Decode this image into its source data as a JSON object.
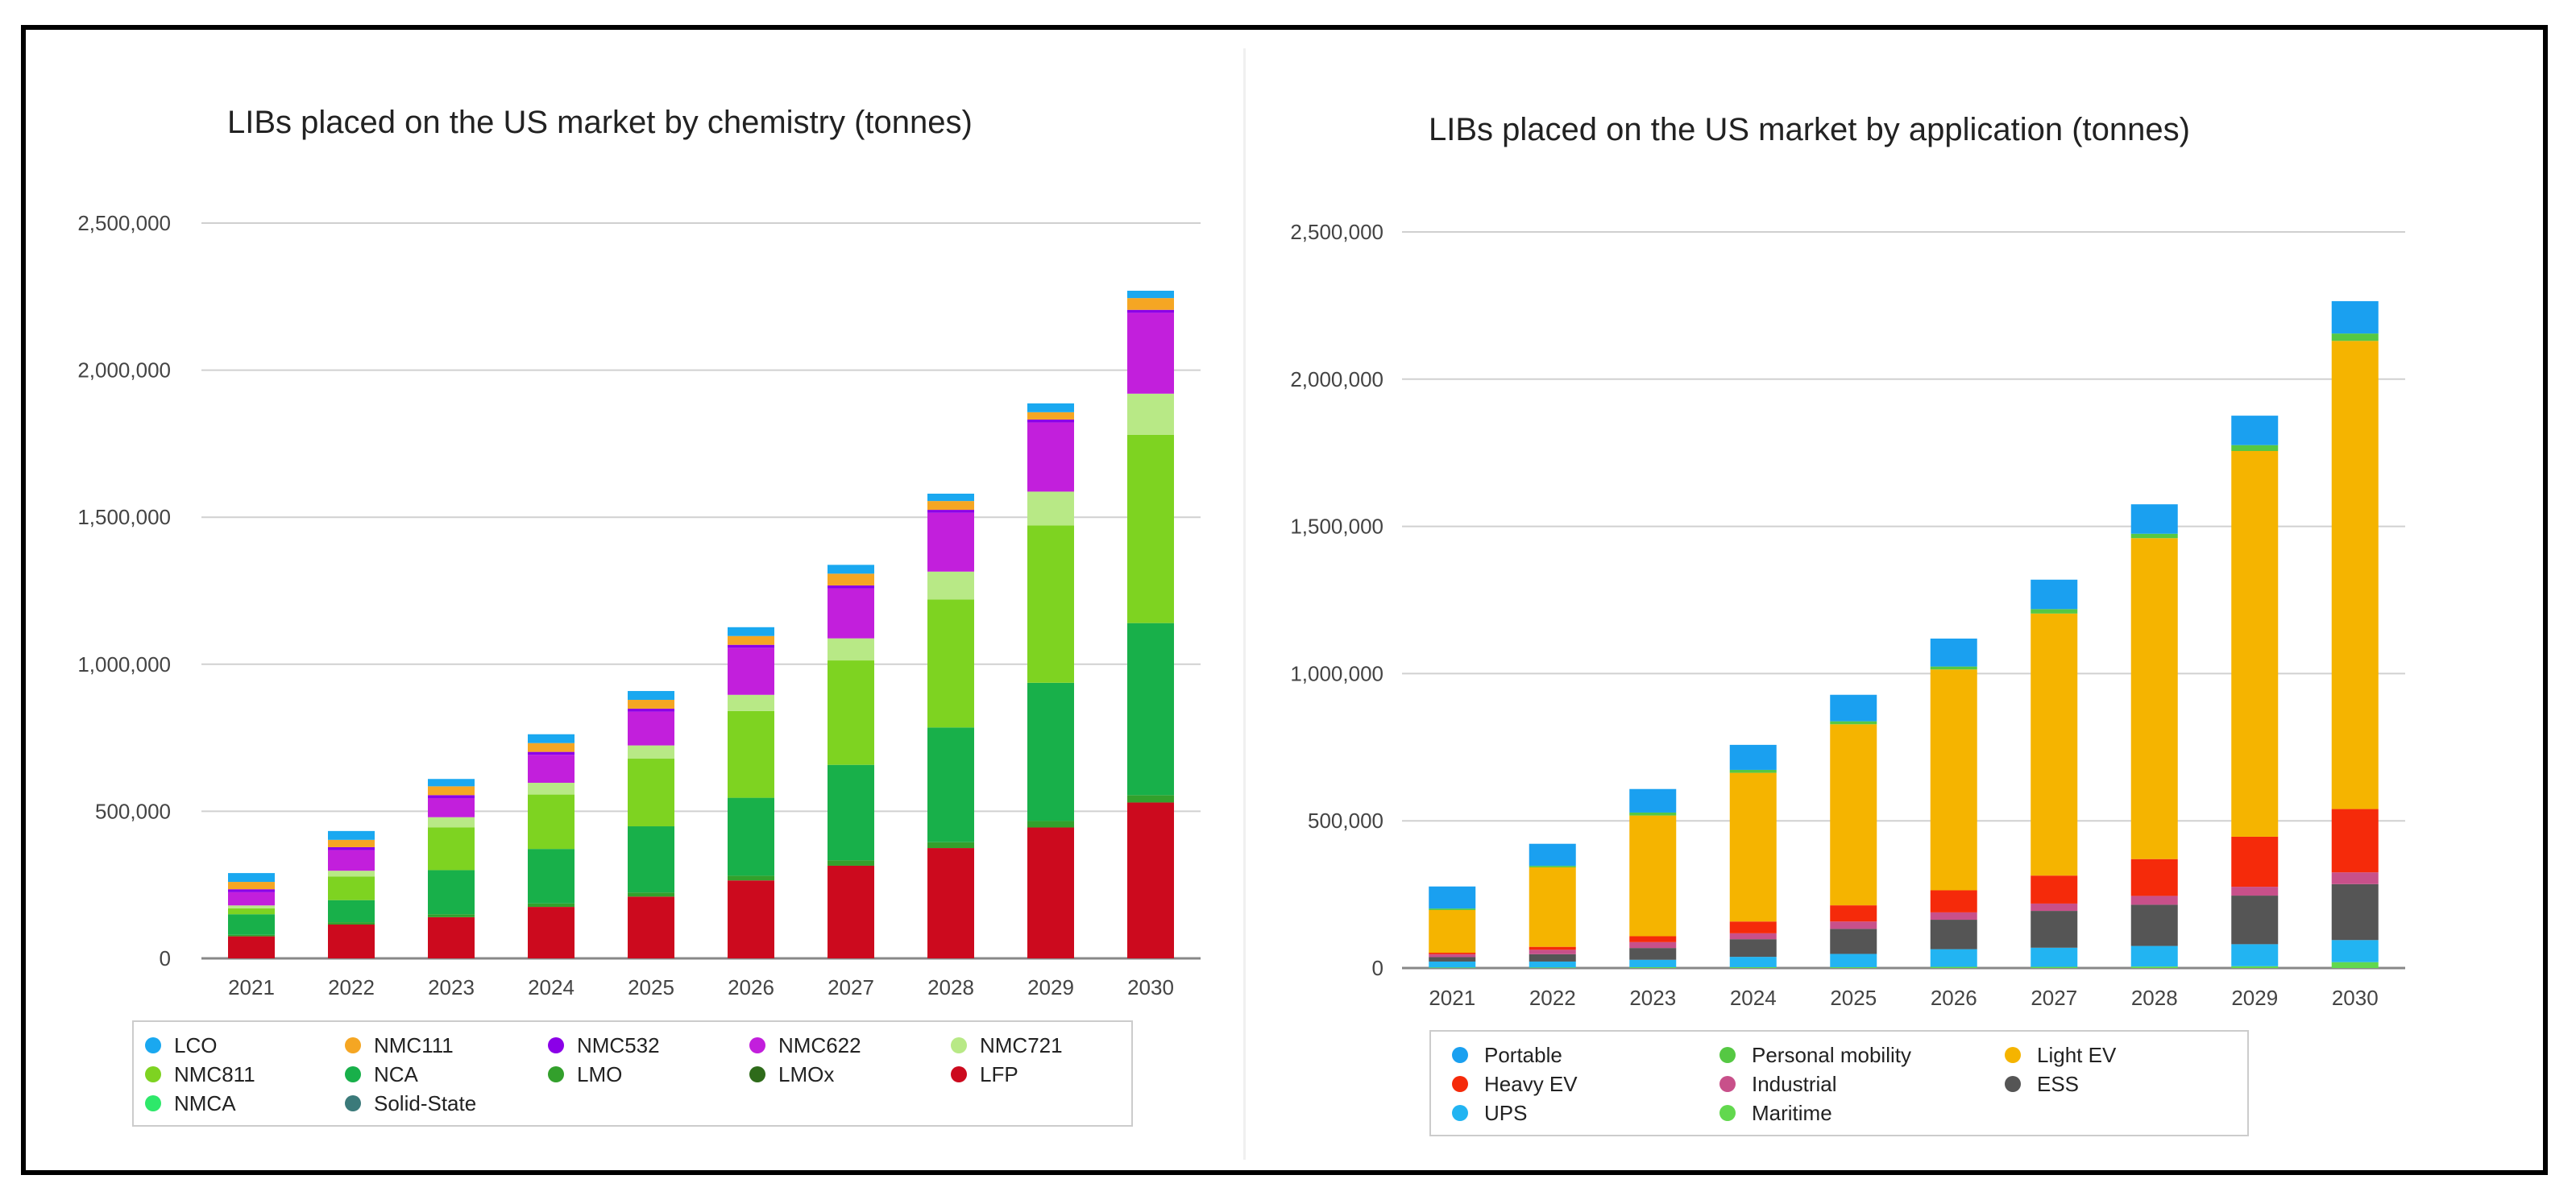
{
  "chart_data": [
    {
      "type": "bar",
      "stacked": true,
      "title": "LIBs placed on the US market by chemistry (tonnes)",
      "xlabel": "",
      "ylabel": "",
      "ylim": [
        0,
        2500000
      ],
      "yticks": [
        0,
        500000,
        1000000,
        1500000,
        2000000,
        2500000
      ],
      "ytick_labels": [
        "0",
        "500,000",
        "1,000,000",
        "1,500,000",
        "2,000,000",
        "2,500,000"
      ],
      "grid": true,
      "legend_position": "bottom",
      "categories": [
        "2021",
        "2022",
        "2023",
        "2024",
        "2025",
        "2026",
        "2027",
        "2028",
        "2029",
        "2030"
      ],
      "series": [
        {
          "name": "LFP",
          "color": "#cc0a1e",
          "values": [
            75000,
            115000,
            140000,
            175000,
            210000,
            265000,
            315000,
            375000,
            445000,
            530000
          ]
        },
        {
          "name": "LMOx",
          "color": "#2e6b1a",
          "values": [
            0,
            0,
            0,
            0,
            0,
            0,
            0,
            0,
            0,
            0
          ]
        },
        {
          "name": "LMO",
          "color": "#33a02c",
          "values": [
            5000,
            8000,
            10000,
            12000,
            14000,
            16000,
            18000,
            20000,
            22000,
            25000
          ]
        },
        {
          "name": "NCA",
          "color": "#18b04a",
          "values": [
            70000,
            75000,
            150000,
            185000,
            225000,
            265000,
            325000,
            390000,
            470000,
            585000
          ]
        },
        {
          "name": "NMC811",
          "color": "#7ed321",
          "values": [
            20000,
            80000,
            145000,
            185000,
            230000,
            295000,
            355000,
            435000,
            535000,
            640000
          ]
        },
        {
          "name": "NMC721",
          "color": "#b8e986",
          "values": [
            10000,
            20000,
            35000,
            40000,
            45000,
            55000,
            75000,
            95000,
            115000,
            140000
          ]
        },
        {
          "name": "NMC622",
          "color": "#c21fdc",
          "values": [
            45000,
            70000,
            65000,
            95000,
            115000,
            160000,
            170000,
            200000,
            235000,
            275000
          ]
        },
        {
          "name": "NMC532",
          "color": "#8b00e8",
          "values": [
            10000,
            10000,
            10000,
            10000,
            10000,
            10000,
            10000,
            10000,
            10000,
            10000
          ]
        },
        {
          "name": "NMC111",
          "color": "#f5a623",
          "values": [
            25000,
            25000,
            30000,
            30000,
            30000,
            30000,
            40000,
            30000,
            25000,
            40000
          ]
        },
        {
          "name": "NMCA",
          "color": "#2ee86a",
          "values": [
            0,
            0,
            0,
            0,
            0,
            0,
            0,
            0,
            0,
            0
          ]
        },
        {
          "name": "Solid-State",
          "color": "#3b7a7a",
          "values": [
            0,
            0,
            0,
            0,
            0,
            0,
            0,
            0,
            0,
            0
          ]
        },
        {
          "name": "LCO",
          "color": "#1aa8f0",
          "values": [
            30000,
            30000,
            25000,
            30000,
            30000,
            30000,
            30000,
            25000,
            30000,
            25000
          ]
        }
      ],
      "legend": [
        [
          "LCO",
          "NMC111",
          "NMC532",
          "NMC622",
          "NMC721"
        ],
        [
          "NMC811",
          "NCA",
          "LMO",
          "LMOx",
          "LFP"
        ],
        [
          "NMCA",
          "Solid-State"
        ]
      ]
    },
    {
      "type": "bar",
      "stacked": true,
      "title": "LIBs placed on the US market by application (tonnes)",
      "xlabel": "",
      "ylabel": "",
      "ylim": [
        0,
        2500000
      ],
      "yticks": [
        0,
        500000,
        1000000,
        1500000,
        2000000,
        2500000
      ],
      "ytick_labels": [
        "0",
        "500,000",
        "1,000,000",
        "1,500,000",
        "2,000,000",
        "2,500,000"
      ],
      "grid": true,
      "legend_position": "bottom",
      "categories": [
        "2021",
        "2022",
        "2023",
        "2024",
        "2025",
        "2026",
        "2027",
        "2028",
        "2029",
        "2030"
      ],
      "series": [
        {
          "name": "Maritime",
          "color": "#62d84e",
          "values": [
            2000,
            2000,
            3000,
            3000,
            3000,
            4000,
            4000,
            5000,
            6000,
            20000
          ]
        },
        {
          "name": "UPS",
          "color": "#22b4f2",
          "values": [
            20000,
            20000,
            25000,
            35000,
            45000,
            60000,
            65000,
            70000,
            75000,
            75000
          ]
        },
        {
          "name": "ESS",
          "color": "#555555",
          "values": [
            15000,
            25000,
            40000,
            60000,
            85000,
            100000,
            125000,
            140000,
            165000,
            190000
          ]
        },
        {
          "name": "Industrial",
          "color": "#c8508a",
          "values": [
            10000,
            15000,
            20000,
            20000,
            25000,
            25000,
            25000,
            30000,
            30000,
            40000
          ]
        },
        {
          "name": "Heavy EV",
          "color": "#f52a0a",
          "values": [
            5000,
            10000,
            20000,
            40000,
            55000,
            75000,
            95000,
            125000,
            170000,
            215000
          ]
        },
        {
          "name": "Light EV",
          "color": "#f5b400",
          "values": [
            145000,
            270000,
            410000,
            505000,
            615000,
            750000,
            890000,
            1090000,
            1310000,
            1590000
          ]
        },
        {
          "name": "Personal mobility",
          "color": "#55c843",
          "values": [
            5000,
            5000,
            10000,
            10000,
            10000,
            10000,
            15000,
            15000,
            20000,
            25000
          ]
        },
        {
          "name": "Portable",
          "color": "#1aa0f0",
          "values": [
            75000,
            75000,
            80000,
            85000,
            90000,
            95000,
            100000,
            100000,
            100000,
            110000
          ]
        }
      ],
      "legend": [
        [
          "Portable",
          "Personal mobility",
          "Light EV"
        ],
        [
          "Heavy EV",
          "Industrial",
          "ESS"
        ],
        [
          "UPS",
          "Maritime"
        ]
      ]
    }
  ]
}
